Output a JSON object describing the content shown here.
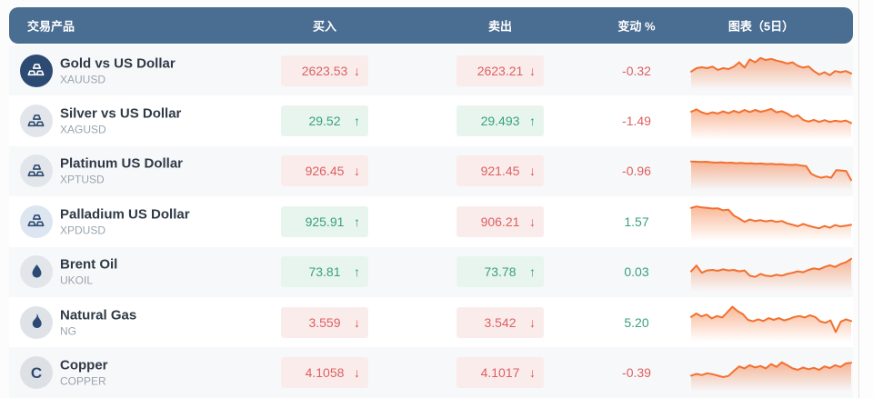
{
  "table": {
    "columns": [
      "交易产品",
      "买入",
      "卖出",
      "变动 %",
      "图表（5日）"
    ],
    "rows": [
      {
        "name": "Gold vs US Dollar",
        "symbol": "XAUUSD",
        "icon": "gold-bars",
        "icon_bg": "#2d4b72",
        "icon_fg": "#ffffff",
        "buy": {
          "value": "2623.53",
          "dir": "down"
        },
        "sell": {
          "value": "2623.21",
          "dir": "down"
        },
        "change": {
          "value": "-0.32",
          "dir": "down"
        },
        "spark": [
          0.38,
          0.5,
          0.53,
          0.5,
          0.55,
          0.44,
          0.5,
          0.47,
          0.55,
          0.7,
          0.52,
          0.8,
          0.7,
          0.85,
          0.78,
          0.82,
          0.76,
          0.72,
          0.66,
          0.7,
          0.58,
          0.52,
          0.56,
          0.4,
          0.28,
          0.36,
          0.26,
          0.4,
          0.36,
          0.4,
          0.32
        ]
      },
      {
        "name": "Silver vs US Dollar",
        "symbol": "XAGUSD",
        "icon": "silver-bars",
        "icon_bg": "#e2e6ea",
        "icon_fg": "#2d4b72",
        "buy": {
          "value": "29.52",
          "dir": "up"
        },
        "sell": {
          "value": "29.493",
          "dir": "up"
        },
        "change": {
          "value": "-1.49",
          "dir": "down"
        },
        "spark": [
          0.72,
          0.8,
          0.7,
          0.64,
          0.7,
          0.66,
          0.73,
          0.67,
          0.75,
          0.69,
          0.78,
          0.71,
          0.78,
          0.72,
          0.76,
          0.82,
          0.7,
          0.74,
          0.66,
          0.54,
          0.6,
          0.44,
          0.38,
          0.44,
          0.37,
          0.43,
          0.37,
          0.41,
          0.38,
          0.42,
          0.33
        ]
      },
      {
        "name": "Platinum US Dollar",
        "symbol": "XPTUSD",
        "icon": "platinum-bars",
        "icon_bg": "#e2e6ea",
        "icon_fg": "#2d4b72",
        "buy": {
          "value": "926.45",
          "dir": "down"
        },
        "sell": {
          "value": "921.45",
          "dir": "down"
        },
        "change": {
          "value": "-0.96",
          "dir": "down"
        },
        "spark": [
          0.76,
          0.75,
          0.74,
          0.75,
          0.73,
          0.72,
          0.73,
          0.71,
          0.72,
          0.7,
          0.71,
          0.69,
          0.7,
          0.68,
          0.69,
          0.67,
          0.68,
          0.66,
          0.67,
          0.65,
          0.64,
          0.65,
          0.62,
          0.6,
          0.34,
          0.25,
          0.2,
          0.24,
          0.2,
          0.46,
          0.45,
          0.43,
          0.12
        ]
      },
      {
        "name": "Palladium US Dollar",
        "symbol": "XPDUSD",
        "icon": "palladium-bars",
        "icon_bg": "#dde5f1",
        "icon_fg": "#2d4b72",
        "buy": {
          "value": "925.91",
          "dir": "up"
        },
        "sell": {
          "value": "906.21",
          "dir": "down"
        },
        "change": {
          "value": "1.57",
          "dir": "up"
        },
        "spark": [
          0.88,
          0.93,
          0.9,
          0.88,
          0.86,
          0.87,
          0.8,
          0.82,
          0.62,
          0.52,
          0.4,
          0.48,
          0.43,
          0.46,
          0.42,
          0.45,
          0.4,
          0.43,
          0.35,
          0.3,
          0.25,
          0.33,
          0.27,
          0.22,
          0.18,
          0.26,
          0.2,
          0.29,
          0.24,
          0.27,
          0.3
        ]
      },
      {
        "name": "Brent Oil",
        "symbol": "UKOIL",
        "icon": "oil-drop",
        "icon_bg": "#e2e6ea",
        "icon_fg": "#2d4b72",
        "buy": {
          "value": "73.81",
          "dir": "up"
        },
        "sell": {
          "value": "73.78",
          "dir": "up"
        },
        "change": {
          "value": "0.03",
          "dir": "up"
        },
        "spark": [
          0.45,
          0.65,
          0.4,
          0.48,
          0.5,
          0.47,
          0.52,
          0.48,
          0.5,
          0.45,
          0.48,
          0.3,
          0.26,
          0.36,
          0.3,
          0.28,
          0.33,
          0.3,
          0.36,
          0.4,
          0.45,
          0.42,
          0.5,
          0.55,
          0.52,
          0.6,
          0.66,
          0.6,
          0.7,
          0.76,
          0.88
        ]
      },
      {
        "name": "Natural Gas",
        "symbol": "NG",
        "icon": "gas-flame",
        "icon_bg": "#dfe3e8",
        "icon_fg": "#2d4b72",
        "buy": {
          "value": "3.559",
          "dir": "down"
        },
        "sell": {
          "value": "3.542",
          "dir": "down"
        },
        "change": {
          "value": "5.20",
          "dir": "up"
        },
        "spark": [
          0.6,
          0.72,
          0.62,
          0.68,
          0.55,
          0.63,
          0.58,
          0.76,
          0.95,
          0.8,
          0.7,
          0.5,
          0.45,
          0.52,
          0.46,
          0.56,
          0.5,
          0.56,
          0.48,
          0.53,
          0.6,
          0.63,
          0.58,
          0.66,
          0.6,
          0.45,
          0.4,
          0.48,
          0.08,
          0.44,
          0.52,
          0.46
        ]
      },
      {
        "name": "Copper",
        "symbol": "COPPER",
        "icon": "copper-letter",
        "icon_bg": "#dde1e6",
        "icon_fg": "#2d4b72",
        "buy": {
          "value": "4.1058",
          "dir": "down"
        },
        "sell": {
          "value": "4.1017",
          "dir": "down"
        },
        "change": {
          "value": "-0.39",
          "dir": "down"
        },
        "spark": [
          0.3,
          0.36,
          0.32,
          0.38,
          0.35,
          0.3,
          0.25,
          0.29,
          0.46,
          0.62,
          0.55,
          0.66,
          0.58,
          0.63,
          0.55,
          0.7,
          0.6,
          0.76,
          0.66,
          0.55,
          0.5,
          0.58,
          0.52,
          0.57,
          0.5,
          0.62,
          0.56,
          0.66,
          0.6,
          0.72,
          0.74
        ]
      }
    ]
  },
  "icons": {
    "up_arrow": "↑",
    "down_arrow": "↓",
    "copper_letter": "C"
  },
  "colors": {
    "header_bg": "#4a6d92",
    "row_alt_bg": "#f7f8fa",
    "down_red": "#dd5f5f",
    "down_bg": "#fbecec",
    "up_green": "#38a081",
    "up_bg": "#e8f5ef",
    "spark_orange": "#f3702f",
    "icon_navy": "#2d4b72"
  }
}
